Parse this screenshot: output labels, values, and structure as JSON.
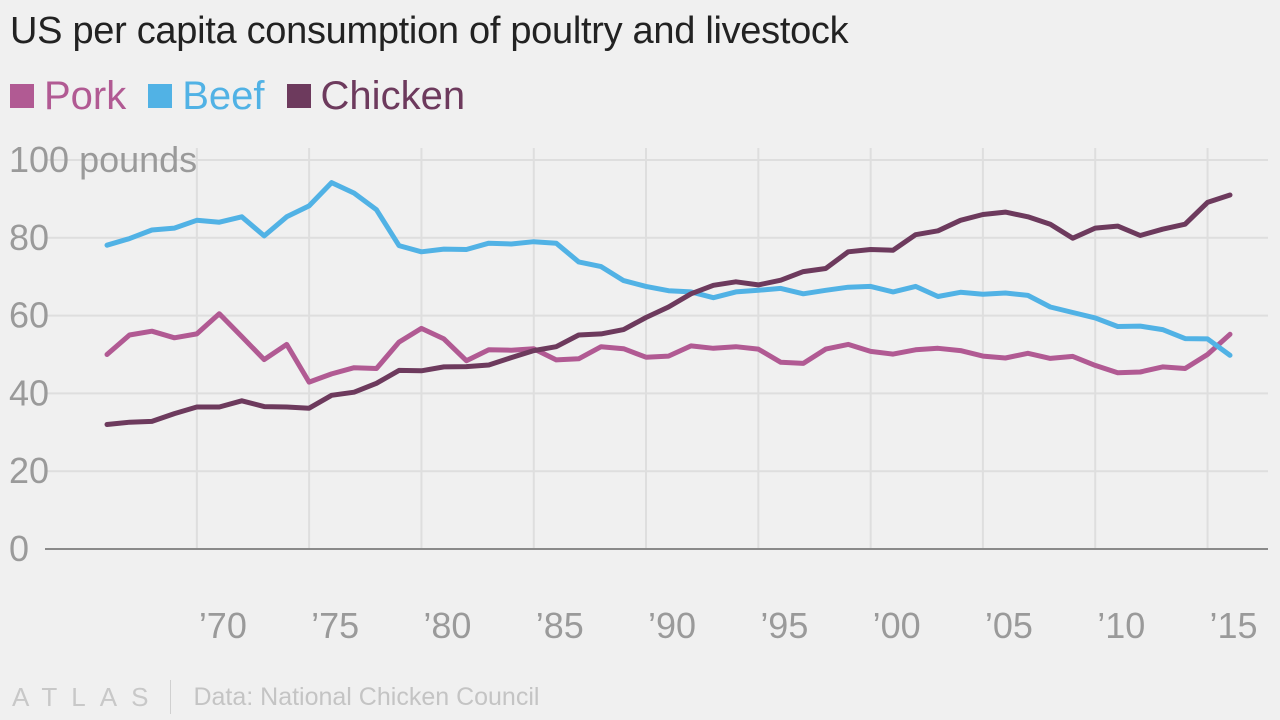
{
  "title": "US per capita consumption of poultry and livestock",
  "legend": [
    {
      "label": "Pork",
      "color": "#b15a93"
    },
    {
      "label": "Beef",
      "color": "#51b2e5"
    },
    {
      "label": "Chicken",
      "color": "#6d3a5d"
    }
  ],
  "footer": {
    "brand": "ATLAS",
    "source": "Data: National Chicken Council"
  },
  "chart_data": {
    "type": "line",
    "title": "US per capita consumption of poultry and livestock",
    "y_unit_label": "100 pounds",
    "ylim": [
      0,
      100
    ],
    "y_ticks": [
      0,
      20,
      40,
      60,
      80,
      100
    ],
    "y_tick_labels": [
      "0",
      "20",
      "40",
      "60",
      "80",
      "100 pounds"
    ],
    "xlim": [
      1966,
      2016
    ],
    "x_ticks": [
      1970,
      1975,
      1980,
      1985,
      1990,
      1995,
      2000,
      2005,
      2010,
      2015
    ],
    "x_tick_labels": [
      "’70",
      "’75",
      "’80",
      "’85",
      "’90",
      "’95",
      "’00",
      "’05",
      "’10",
      "’15"
    ],
    "grid": true,
    "legend_position": "top-left",
    "x": [
      1966,
      1967,
      1968,
      1969,
      1970,
      1971,
      1972,
      1973,
      1974,
      1975,
      1976,
      1977,
      1978,
      1979,
      1980,
      1981,
      1982,
      1983,
      1984,
      1985,
      1986,
      1987,
      1988,
      1989,
      1990,
      1991,
      1992,
      1993,
      1994,
      1995,
      1996,
      1997,
      1998,
      1999,
      2000,
      2001,
      2002,
      2003,
      2004,
      2005,
      2006,
      2007,
      2008,
      2009,
      2010,
      2011,
      2012,
      2013,
      2014,
      2015,
      2016
    ],
    "series": [
      {
        "name": "Pork",
        "color": "#b15a93",
        "values": [
          50,
          55,
          56,
          54.3,
          55.3,
          60.5,
          54.6,
          48.7,
          52.6,
          42.9,
          45,
          46.6,
          46.4,
          53.2,
          56.7,
          54,
          48.4,
          51.2,
          51.1,
          51.5,
          48.6,
          48.9,
          52,
          51.5,
          49.3,
          49.6,
          52.2,
          51.6,
          52,
          51.4,
          48,
          47.7,
          51.4,
          52.6,
          50.8,
          50.1,
          51.2,
          51.6,
          51,
          49.6,
          49.1,
          50.3,
          49,
          49.5,
          47.2,
          45.3,
          45.5,
          46.8,
          46.4,
          50,
          55.2
        ]
      },
      {
        "name": "Beef",
        "color": "#51b2e5",
        "values": [
          78.1,
          79.8,
          82,
          82.5,
          84.5,
          84,
          85.4,
          80.5,
          85.4,
          88.2,
          94.2,
          91.5,
          87.2,
          78,
          76.4,
          77.1,
          77,
          78.6,
          78.4,
          79,
          78.6,
          73.8,
          72.6,
          69,
          67.5,
          66.4,
          66.1,
          64.6,
          66.1,
          66.5,
          67,
          65.6,
          66.5,
          67.3,
          67.5,
          66.1,
          67.5,
          64.9,
          66,
          65.5,
          65.8,
          65.2,
          62.2,
          60.8,
          59.4,
          57.2,
          57.3,
          56.4,
          54.1,
          54,
          49.8
        ]
      },
      {
        "name": "Chicken",
        "color": "#6d3a5d",
        "values": [
          32,
          32.6,
          32.8,
          34.8,
          36.5,
          36.5,
          38.1,
          36.6,
          36.5,
          36.2,
          39.5,
          40.3,
          42.6,
          45.9,
          45.8,
          46.8,
          46.9,
          47.3,
          49.2,
          51,
          52,
          55,
          55.3,
          56.4,
          59.5,
          62.2,
          65.6,
          67.8,
          68.7,
          67.9,
          69.1,
          71.3,
          72.1,
          76.4,
          77,
          76.8,
          80.8,
          81.8,
          84.5,
          86,
          86.6,
          85.4,
          83.5,
          79.9,
          82.5,
          83,
          80.6,
          82.2,
          83.5,
          89.1,
          91
        ]
      }
    ]
  }
}
